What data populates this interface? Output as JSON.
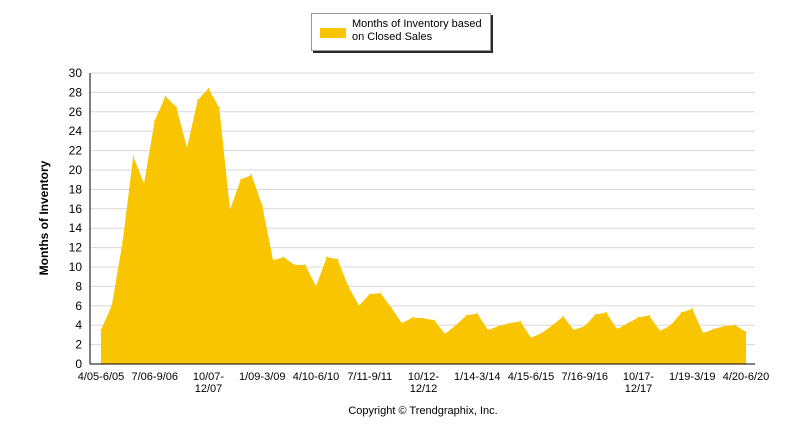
{
  "chart_data": {
    "type": "area",
    "title": "",
    "xlabel": "",
    "ylabel": "Months of Inventory",
    "ylim": [
      0,
      30
    ],
    "yticks": [
      0,
      2,
      4,
      6,
      8,
      10,
      12,
      14,
      16,
      18,
      20,
      22,
      24,
      26,
      28,
      30
    ],
    "grid": true,
    "legend_position": "top-center",
    "series": [
      {
        "name": "Months of Inventory based on Closed Sales",
        "color": "#F8C500",
        "x": [
          "4/05-6/05",
          "7/05-9/05",
          "10/05-12/05",
          "1/06-3/06",
          "4/06-6/06",
          "7/06-9/06",
          "10/06-12/06",
          "1/07-3/07",
          "4/07-6/07",
          "7/07-9/07",
          "10/07-12/07",
          "1/08-3/08",
          "4/08-6/08",
          "7/08-9/08",
          "10/08-12/08",
          "1/09-3/09",
          "4/09-6/09",
          "7/09-9/09",
          "10/09-12/09",
          "1/10-3/10",
          "4/10-6/10",
          "7/10-9/10",
          "10/10-12/10",
          "1/11-3/11",
          "4/11-6/11",
          "7/11-9/11",
          "10/11-12/11",
          "1/12-3/12",
          "4/12-6/12",
          "7/12-9/12",
          "10/12-12/12",
          "1/13-3/13",
          "4/13-6/13",
          "7/13-9/13",
          "10/13-12/13",
          "1/14-3/14",
          "4/14-6/14",
          "7/14-9/14",
          "10/14-12/14",
          "1/15-3/15",
          "4/15-6/15",
          "7/15-9/15",
          "10/15-12/15",
          "1/16-3/16",
          "4/16-6/16",
          "7/16-9/16",
          "10/16-12/16",
          "1/17-3/17",
          "4/17-6/17",
          "7/17-9/17",
          "10/17-12/17",
          "1/18-3/18",
          "4/18-6/18",
          "7/18-9/18",
          "10/18-12/18",
          "1/19-3/19",
          "4/19-6/19",
          "7/19-9/19",
          "10/19-12/19",
          "1/20-3/20",
          "4/20-6/20"
        ],
        "values": [
          3.5,
          6.0,
          12.5,
          21.4,
          18.6,
          25.1,
          27.6,
          26.5,
          22.3,
          27.2,
          28.4,
          26.4,
          15.9,
          19.0,
          19.5,
          16.3,
          10.7,
          11.0,
          10.2,
          10.2,
          8.0,
          11.0,
          10.8,
          8.0,
          6.0,
          7.2,
          7.3,
          5.8,
          4.2,
          4.8,
          4.7,
          4.5,
          3.1,
          4.0,
          5.0,
          5.2,
          3.5,
          3.9,
          4.2,
          4.4,
          2.7,
          3.2,
          4.0,
          4.9,
          3.5,
          3.9,
          5.1,
          5.3,
          3.6,
          4.2,
          4.8,
          5.0,
          3.4,
          4.0,
          5.3,
          5.7,
          3.2,
          3.6,
          3.9,
          4.0,
          3.3
        ]
      }
    ],
    "x_tick_labels": [
      {
        "index": 0,
        "lines": [
          "4/05-6/05"
        ]
      },
      {
        "index": 5,
        "lines": [
          "7/06-9/06"
        ]
      },
      {
        "index": 10,
        "lines": [
          "10/07-",
          "12/07"
        ]
      },
      {
        "index": 15,
        "lines": [
          "1/09-3/09"
        ]
      },
      {
        "index": 20,
        "lines": [
          "4/10-6/10"
        ]
      },
      {
        "index": 25,
        "lines": [
          "7/11-9/11"
        ]
      },
      {
        "index": 30,
        "lines": [
          "10/12-",
          "12/12"
        ]
      },
      {
        "index": 35,
        "lines": [
          "1/14-3/14"
        ]
      },
      {
        "index": 40,
        "lines": [
          "4/15-6/15"
        ]
      },
      {
        "index": 45,
        "lines": [
          "7/16-9/16"
        ]
      },
      {
        "index": 50,
        "lines": [
          "10/17-",
          "12/17"
        ]
      },
      {
        "index": 55,
        "lines": [
          "1/19-3/19"
        ]
      },
      {
        "index": 60,
        "lines": [
          "4/20-6/20"
        ]
      }
    ]
  },
  "legend": {
    "label_line1": "Months of Inventory based",
    "label_line2": "on Closed Sales"
  },
  "footer": {
    "copyright": "Copyright © Trendgraphix, Inc."
  }
}
